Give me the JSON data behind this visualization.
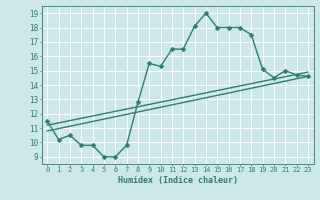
{
  "xlabel": "Humidex (Indice chaleur)",
  "ylabel": "",
  "bg_color": "#cce8e8",
  "grid_color": "#ffffff",
  "line_color": "#2e7d6e",
  "xlim": [
    -0.5,
    23.5
  ],
  "ylim": [
    8.5,
    19.5
  ],
  "xticks": [
    0,
    1,
    2,
    3,
    4,
    5,
    6,
    7,
    8,
    9,
    10,
    11,
    12,
    13,
    14,
    15,
    16,
    17,
    18,
    19,
    20,
    21,
    22,
    23
  ],
  "yticks": [
    9,
    10,
    11,
    12,
    13,
    14,
    15,
    16,
    17,
    18,
    19
  ],
  "line1_x": [
    0,
    1,
    2,
    3,
    4,
    5,
    6,
    7,
    8,
    9,
    10,
    11,
    12,
    13,
    14,
    15,
    16,
    17,
    18,
    19,
    20,
    21,
    22,
    23
  ],
  "line1_y": [
    11.5,
    10.2,
    10.5,
    9.8,
    9.8,
    9.0,
    9.0,
    9.8,
    12.8,
    15.5,
    15.3,
    16.5,
    16.5,
    18.1,
    19.0,
    18.0,
    18.0,
    18.0,
    17.5,
    15.1,
    14.5,
    15.0,
    14.7,
    14.6
  ],
  "line2_x": [
    0,
    23
  ],
  "line2_y": [
    10.8,
    14.6
  ],
  "line3_x": [
    0,
    23
  ],
  "line3_y": [
    11.2,
    14.9
  ],
  "marker_size": 2.5,
  "line_width": 1.0
}
